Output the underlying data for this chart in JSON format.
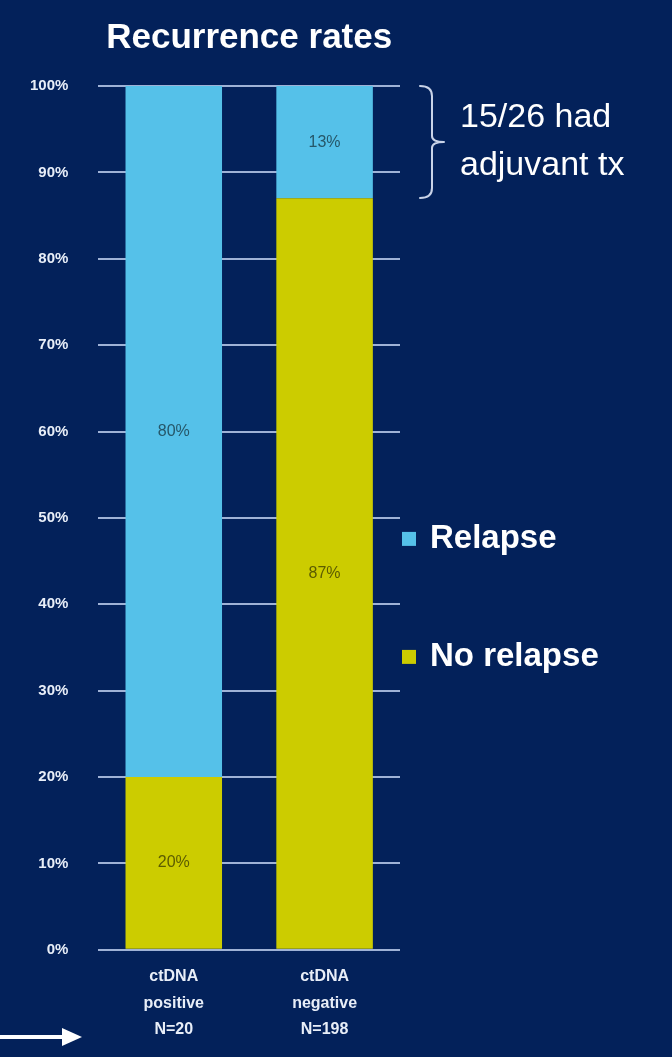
{
  "chart_data": {
    "type": "bar",
    "title": "Recurrence rates",
    "categories": [
      "ctDNA positive N=20",
      "ctDNA negative N=198"
    ],
    "stacked": true,
    "series": [
      {
        "name": "No relapse",
        "color": "#cccc00",
        "values": [
          20,
          87
        ],
        "value_labels": [
          "20%",
          "87%"
        ]
      },
      {
        "name": "Relapse",
        "color": "#55c1e9",
        "values": [
          80,
          13
        ],
        "value_labels": [
          "80%",
          "13%"
        ]
      }
    ],
    "ylim": [
      0,
      100
    ],
    "yticks": [
      {
        "value": 0,
        "label": "0%"
      },
      {
        "value": 10,
        "label": "10%"
      },
      {
        "value": 20,
        "label": "20%"
      },
      {
        "value": 30,
        "label": "30%"
      },
      {
        "value": 40,
        "label": "40%"
      },
      {
        "value": 50,
        "label": "50%"
      },
      {
        "value": 60,
        "label": "60%"
      },
      {
        "value": 70,
        "label": "70%"
      },
      {
        "value": 80,
        "label": "80%"
      },
      {
        "value": 90,
        "label": "90%"
      },
      {
        "value": 100,
        "label": "100%"
      }
    ],
    "grid": "y",
    "legend": "right",
    "annotations": [
      "15/26 had adjuvant tx"
    ]
  }
}
